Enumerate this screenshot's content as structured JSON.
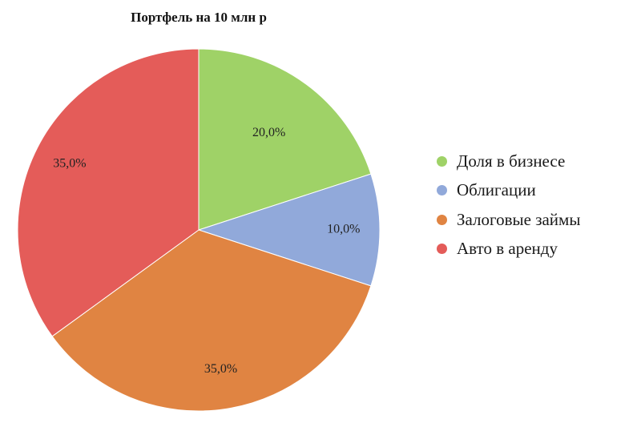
{
  "chart_data": {
    "type": "pie",
    "title": "Портфель на 10 млн р",
    "categories": [
      "Доля в бизнесе",
      "Облигации",
      "Залоговые займы",
      "Авто в аренду"
    ],
    "values": [
      20.0,
      10.0,
      35.0,
      35.0
    ],
    "labels": [
      "20,0%",
      "10,0%",
      "35,0%",
      "35,0%"
    ],
    "colors": [
      "#9fd267",
      "#91a9da",
      "#e08442",
      "#e45c59"
    ],
    "legend_position": "right"
  }
}
